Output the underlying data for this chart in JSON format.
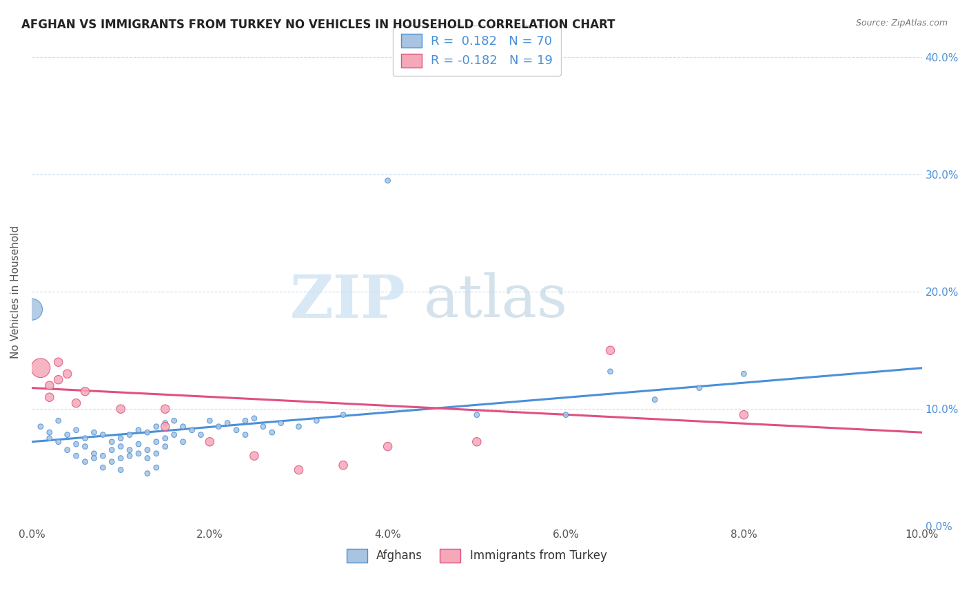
{
  "title": "AFGHAN VS IMMIGRANTS FROM TURKEY NO VEHICLES IN HOUSEHOLD CORRELATION CHART",
  "source": "Source: ZipAtlas.com",
  "ylabel": "No Vehicles in Household",
  "xlabel_afghans": "Afghans",
  "xlabel_turkey": "Immigrants from Turkey",
  "xlim": [
    0.0,
    0.1
  ],
  "ylim": [
    0.0,
    0.4
  ],
  "xticks": [
    0.0,
    0.02,
    0.04,
    0.06,
    0.08,
    0.1
  ],
  "yticks": [
    0.0,
    0.1,
    0.2,
    0.3,
    0.4
  ],
  "xtick_labels": [
    "0.0%",
    "2.0%",
    "4.0%",
    "6.0%",
    "8.0%",
    "10.0%"
  ],
  "ytick_labels": [
    "0.0%",
    "10.0%",
    "20.0%",
    "30.0%",
    "40.0%"
  ],
  "blue_R": "0.182",
  "blue_N": "70",
  "pink_R": "-0.182",
  "pink_N": "19",
  "blue_color": "#a8c4e0",
  "pink_color": "#f4a8b8",
  "blue_line_color": "#4a90d9",
  "pink_line_color": "#e05080",
  "watermark_zip": "ZIP",
  "watermark_atlas": "atlas",
  "blue_scatter": [
    [
      0.0,
      0.185
    ],
    [
      0.001,
      0.085
    ],
    [
      0.002,
      0.075
    ],
    [
      0.002,
      0.08
    ],
    [
      0.003,
      0.09
    ],
    [
      0.003,
      0.072
    ],
    [
      0.004,
      0.078
    ],
    [
      0.004,
      0.065
    ],
    [
      0.005,
      0.082
    ],
    [
      0.005,
      0.07
    ],
    [
      0.005,
      0.06
    ],
    [
      0.006,
      0.068
    ],
    [
      0.006,
      0.075
    ],
    [
      0.006,
      0.055
    ],
    [
      0.007,
      0.08
    ],
    [
      0.007,
      0.062
    ],
    [
      0.007,
      0.058
    ],
    [
      0.008,
      0.078
    ],
    [
      0.008,
      0.06
    ],
    [
      0.008,
      0.05
    ],
    [
      0.009,
      0.072
    ],
    [
      0.009,
      0.065
    ],
    [
      0.009,
      0.055
    ],
    [
      0.01,
      0.075
    ],
    [
      0.01,
      0.068
    ],
    [
      0.01,
      0.058
    ],
    [
      0.01,
      0.048
    ],
    [
      0.011,
      0.078
    ],
    [
      0.011,
      0.065
    ],
    [
      0.011,
      0.06
    ],
    [
      0.012,
      0.082
    ],
    [
      0.012,
      0.07
    ],
    [
      0.012,
      0.062
    ],
    [
      0.013,
      0.08
    ],
    [
      0.013,
      0.065
    ],
    [
      0.013,
      0.058
    ],
    [
      0.013,
      0.045
    ],
    [
      0.014,
      0.085
    ],
    [
      0.014,
      0.072
    ],
    [
      0.014,
      0.062
    ],
    [
      0.014,
      0.05
    ],
    [
      0.015,
      0.088
    ],
    [
      0.015,
      0.075
    ],
    [
      0.015,
      0.068
    ],
    [
      0.016,
      0.09
    ],
    [
      0.016,
      0.078
    ],
    [
      0.017,
      0.085
    ],
    [
      0.017,
      0.072
    ],
    [
      0.018,
      0.082
    ],
    [
      0.019,
      0.078
    ],
    [
      0.02,
      0.09
    ],
    [
      0.021,
      0.085
    ],
    [
      0.022,
      0.088
    ],
    [
      0.023,
      0.082
    ],
    [
      0.024,
      0.09
    ],
    [
      0.024,
      0.078
    ],
    [
      0.025,
      0.092
    ],
    [
      0.026,
      0.085
    ],
    [
      0.027,
      0.08
    ],
    [
      0.028,
      0.088
    ],
    [
      0.03,
      0.085
    ],
    [
      0.032,
      0.09
    ],
    [
      0.035,
      0.095
    ],
    [
      0.04,
      0.295
    ],
    [
      0.05,
      0.095
    ],
    [
      0.06,
      0.095
    ],
    [
      0.065,
      0.132
    ],
    [
      0.07,
      0.108
    ],
    [
      0.075,
      0.118
    ],
    [
      0.08,
      0.13
    ]
  ],
  "blue_sizes": [
    500,
    30,
    30,
    30,
    30,
    30,
    30,
    30,
    30,
    30,
    30,
    30,
    30,
    30,
    30,
    30,
    30,
    30,
    30,
    30,
    30,
    30,
    30,
    30,
    30,
    30,
    30,
    30,
    30,
    30,
    30,
    30,
    30,
    30,
    30,
    30,
    30,
    30,
    30,
    30,
    30,
    30,
    30,
    30,
    30,
    30,
    30,
    30,
    30,
    30,
    30,
    30,
    30,
    30,
    30,
    30,
    30,
    30,
    30,
    30,
    30,
    30,
    30,
    30,
    30,
    30,
    30,
    30,
    30,
    30
  ],
  "pink_scatter": [
    [
      0.001,
      0.135
    ],
    [
      0.002,
      0.12
    ],
    [
      0.002,
      0.11
    ],
    [
      0.003,
      0.14
    ],
    [
      0.003,
      0.125
    ],
    [
      0.004,
      0.13
    ],
    [
      0.005,
      0.105
    ],
    [
      0.006,
      0.115
    ],
    [
      0.01,
      0.1
    ],
    [
      0.015,
      0.1
    ],
    [
      0.015,
      0.085
    ],
    [
      0.02,
      0.072
    ],
    [
      0.025,
      0.06
    ],
    [
      0.03,
      0.048
    ],
    [
      0.035,
      0.052
    ],
    [
      0.04,
      0.068
    ],
    [
      0.05,
      0.072
    ],
    [
      0.065,
      0.15
    ],
    [
      0.08,
      0.095
    ]
  ],
  "pink_sizes": [
    400,
    80,
    80,
    80,
    80,
    80,
    80,
    80,
    80,
    80,
    80,
    80,
    80,
    80,
    80,
    80,
    80,
    80,
    80
  ],
  "blue_trendline": [
    [
      0.0,
      0.072
    ],
    [
      0.1,
      0.135
    ]
  ],
  "pink_trendline": [
    [
      0.0,
      0.118
    ],
    [
      0.1,
      0.08
    ]
  ]
}
